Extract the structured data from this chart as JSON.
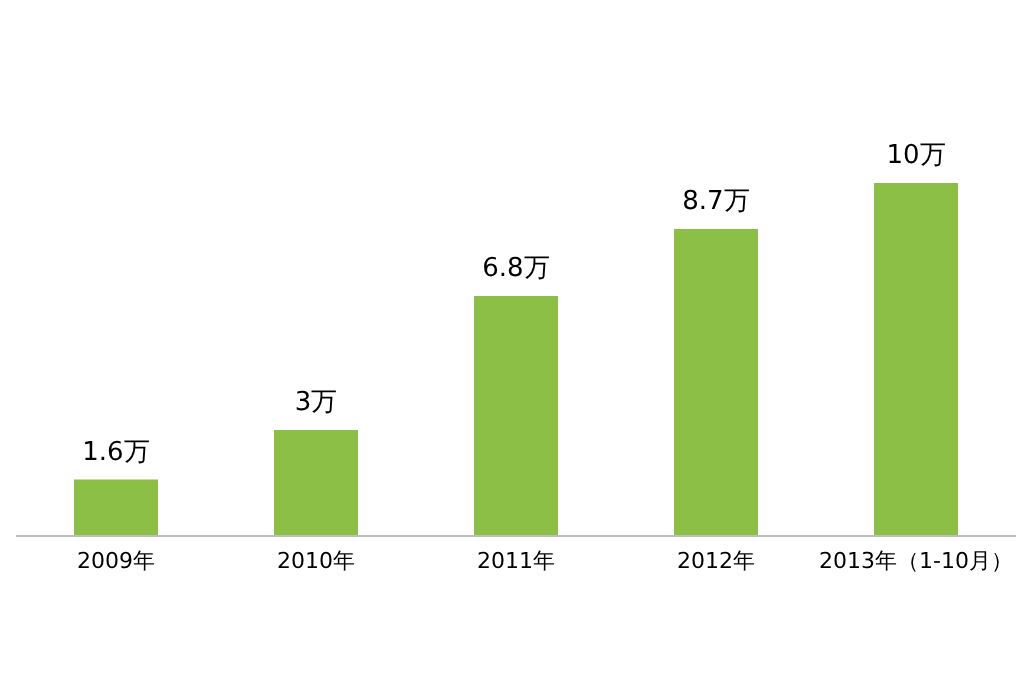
{
  "chart_data": {
    "type": "bar",
    "categories": [
      "2009年",
      "2010年",
      "2011年",
      "2012年",
      "2013年（1-10月）"
    ],
    "values": [
      1.6,
      3,
      6.8,
      8.7,
      10
    ],
    "value_labels": [
      "1.6万",
      "3万",
      "6.8万",
      "8.7万",
      "10万"
    ],
    "color": "#8cbf45",
    "grid": false,
    "legend": false
  }
}
